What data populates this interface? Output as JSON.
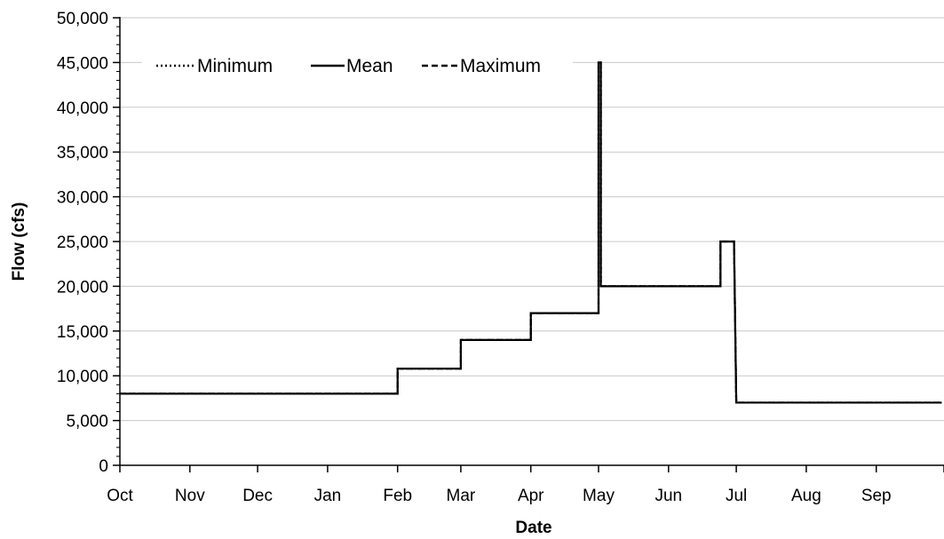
{
  "chart_data": {
    "type": "line",
    "title": "",
    "xlabel": "Date",
    "ylabel": "Flow (cfs)",
    "ylim": [
      0,
      50000
    ],
    "yticks": [
      0,
      5000,
      10000,
      15000,
      20000,
      25000,
      30000,
      35000,
      40000,
      45000,
      50000
    ],
    "ytick_labels": [
      "0",
      "5,000",
      "10,000",
      "15,000",
      "20,000",
      "25,000",
      "30,000",
      "35,000",
      "40,000",
      "45,000",
      "50,000"
    ],
    "xlim": [
      "Oct 1",
      "Oct 1 (next year)"
    ],
    "x_tick_labels": [
      "Oct",
      "Nov",
      "Dec",
      "Jan",
      "Feb",
      "Mar",
      "Apr",
      "May",
      "Jun",
      "Jul",
      "Aug",
      "Sep"
    ],
    "grid": {
      "horizontal": true,
      "vertical": false
    },
    "legend": {
      "placement": "top-left",
      "entries": [
        "Minimum",
        "Mean",
        "Maximum"
      ]
    },
    "series": [
      {
        "name": "Minimum",
        "style": "dotted",
        "color": "#000000",
        "x": [
          "Oct 1",
          "Feb 1",
          "Feb 1",
          "Mar 1",
          "Mar 1",
          "Apr 1",
          "Apr 1",
          "May 1",
          "May 1",
          "May 2",
          "May 2",
          "Jun 24",
          "Jun 24",
          "Jun 30",
          "Jun 30",
          "Jul 1",
          "Jul 1",
          "Sep 30"
        ],
        "y": [
          8000,
          8000,
          10800,
          10800,
          14000,
          14000,
          17000,
          17000,
          45000,
          45000,
          20000,
          20000,
          25000,
          25000,
          25000,
          7000,
          7000,
          7000
        ]
      },
      {
        "name": "Mean",
        "style": "solid",
        "color": "#000000",
        "x": [
          "Oct 1",
          "Feb 1",
          "Feb 1",
          "Mar 1",
          "Mar 1",
          "Apr 1",
          "Apr 1",
          "May 1",
          "May 1",
          "May 2",
          "May 2",
          "Jun 24",
          "Jun 24",
          "Jun 30",
          "Jun 30",
          "Jul 1",
          "Jul 1",
          "Sep 30"
        ],
        "y": [
          8000,
          8000,
          10800,
          10800,
          14000,
          14000,
          17000,
          17000,
          45000,
          45000,
          20000,
          20000,
          25000,
          25000,
          25000,
          7000,
          7000,
          7000
        ]
      },
      {
        "name": "Maximum",
        "style": "dashed",
        "color": "#000000",
        "x": [
          "Oct 1",
          "Feb 1",
          "Feb 1",
          "Mar 1",
          "Mar 1",
          "Apr 1",
          "Apr 1",
          "May 1",
          "May 1",
          "May 2",
          "May 2",
          "Jun 24",
          "Jun 24",
          "Jun 30",
          "Jun 30",
          "Jul 1",
          "Jul 1",
          "Sep 30"
        ],
        "y": [
          8000,
          8000,
          10800,
          10800,
          14000,
          14000,
          17000,
          17000,
          45000,
          45000,
          20000,
          20000,
          25000,
          25000,
          25000,
          7000,
          7000,
          7000
        ]
      }
    ]
  }
}
